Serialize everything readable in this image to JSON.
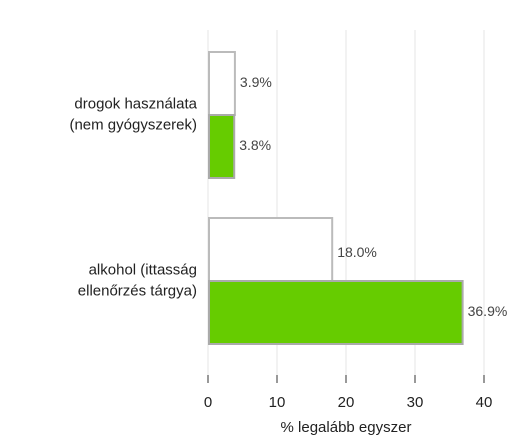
{
  "chart_data": {
    "type": "bar",
    "orientation": "horizontal",
    "categories": [
      [
        "drogok használata",
        "(nem gyógyszerek)"
      ],
      [
        "alkohol (ittasság",
        "ellenőrzés tárgya)"
      ]
    ],
    "series": [
      {
        "color": "#ffffff",
        "edge": "#bbbbbb",
        "values": [
          3.9,
          18.0
        ],
        "value_labels": [
          "3.9%",
          "18.0%"
        ]
      },
      {
        "color": "#66cc00",
        "edge": "#aaaaaa",
        "values": [
          3.8,
          36.9
        ],
        "value_labels": [
          "3.8%",
          "36.9%"
        ]
      }
    ],
    "xlabel": "% legalább egyszer",
    "xlim": [
      0,
      40
    ],
    "xticks": [
      0,
      10,
      20,
      30,
      40
    ],
    "grid": true
  }
}
